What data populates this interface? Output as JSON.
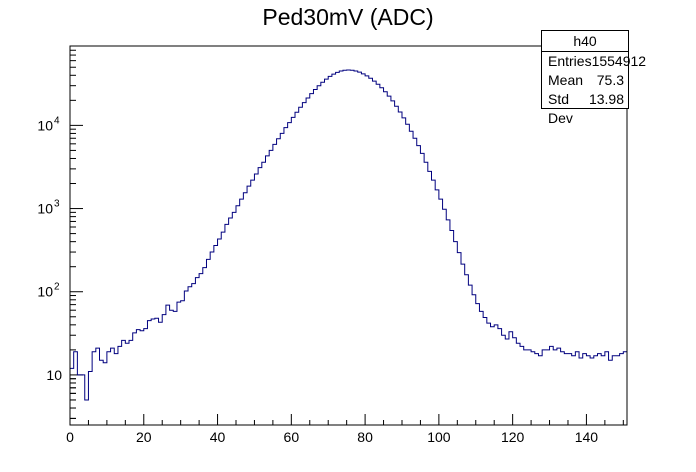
{
  "chart_data": {
    "type": "histogram",
    "title": "Ped30mV (ADC)",
    "xlabel": "",
    "ylabel": "",
    "xlim": [
      0,
      151
    ],
    "ylim": [
      2.5,
      90000
    ],
    "ylog": true,
    "grid": false,
    "bin_width": 1,
    "x_ticks": [
      0,
      20,
      40,
      60,
      80,
      100,
      120,
      140
    ],
    "y_ticks": [
      {
        "value": 10,
        "label": "10"
      },
      {
        "value": 100,
        "label": "10",
        "exp": "2"
      },
      {
        "value": 1000,
        "label": "10",
        "exp": "3"
      },
      {
        "value": 10000,
        "label": "10",
        "exp": "4"
      }
    ],
    "line_color": "#00007f",
    "bin_values": [
      12,
      19,
      10,
      10,
      5,
      11,
      19,
      21,
      15,
      14,
      19,
      21,
      18,
      22,
      26,
      24,
      26,
      32,
      35,
      34,
      36,
      45,
      47,
      48,
      43,
      53,
      69,
      60,
      58,
      75,
      78,
      102,
      115,
      125,
      148,
      165,
      195,
      245,
      300,
      360,
      430,
      520,
      645,
      770,
      900,
      1080,
      1300,
      1550,
      1860,
      2200,
      2600,
      3100,
      3600,
      4300,
      5000,
      5900,
      6900,
      8000,
      9400,
      10800,
      12500,
      14400,
      16500,
      18800,
      21300,
      24100,
      27000,
      30000,
      33000,
      36000,
      38800,
      41300,
      43400,
      45000,
      46000,
      46300,
      46000,
      45100,
      43600,
      41600,
      39300,
      36800,
      34000,
      31200,
      28300,
      25400,
      22500,
      19700,
      17000,
      14500,
      12300,
      10300,
      8500,
      7000,
      5700,
      4600,
      3600,
      2800,
      2200,
      1680,
      1300,
      980,
      730,
      545,
      400,
      295,
      215,
      160,
      120,
      92,
      72,
      58,
      49,
      42,
      38,
      40,
      36,
      30,
      27,
      33,
      28,
      24,
      22,
      20,
      20,
      19,
      18,
      17,
      20,
      20,
      22,
      20,
      21,
      19,
      18,
      18,
      17,
      19,
      16,
      18,
      17,
      16,
      17,
      18,
      17,
      19,
      15,
      17,
      17,
      18,
      19
    ]
  },
  "stats_box": {
    "name": "h40",
    "rows": [
      {
        "label": "Entries",
        "value": "1554912"
      },
      {
        "label": "Mean",
        "value": "75.3"
      },
      {
        "label": "Std Dev",
        "value": "13.98"
      }
    ]
  }
}
